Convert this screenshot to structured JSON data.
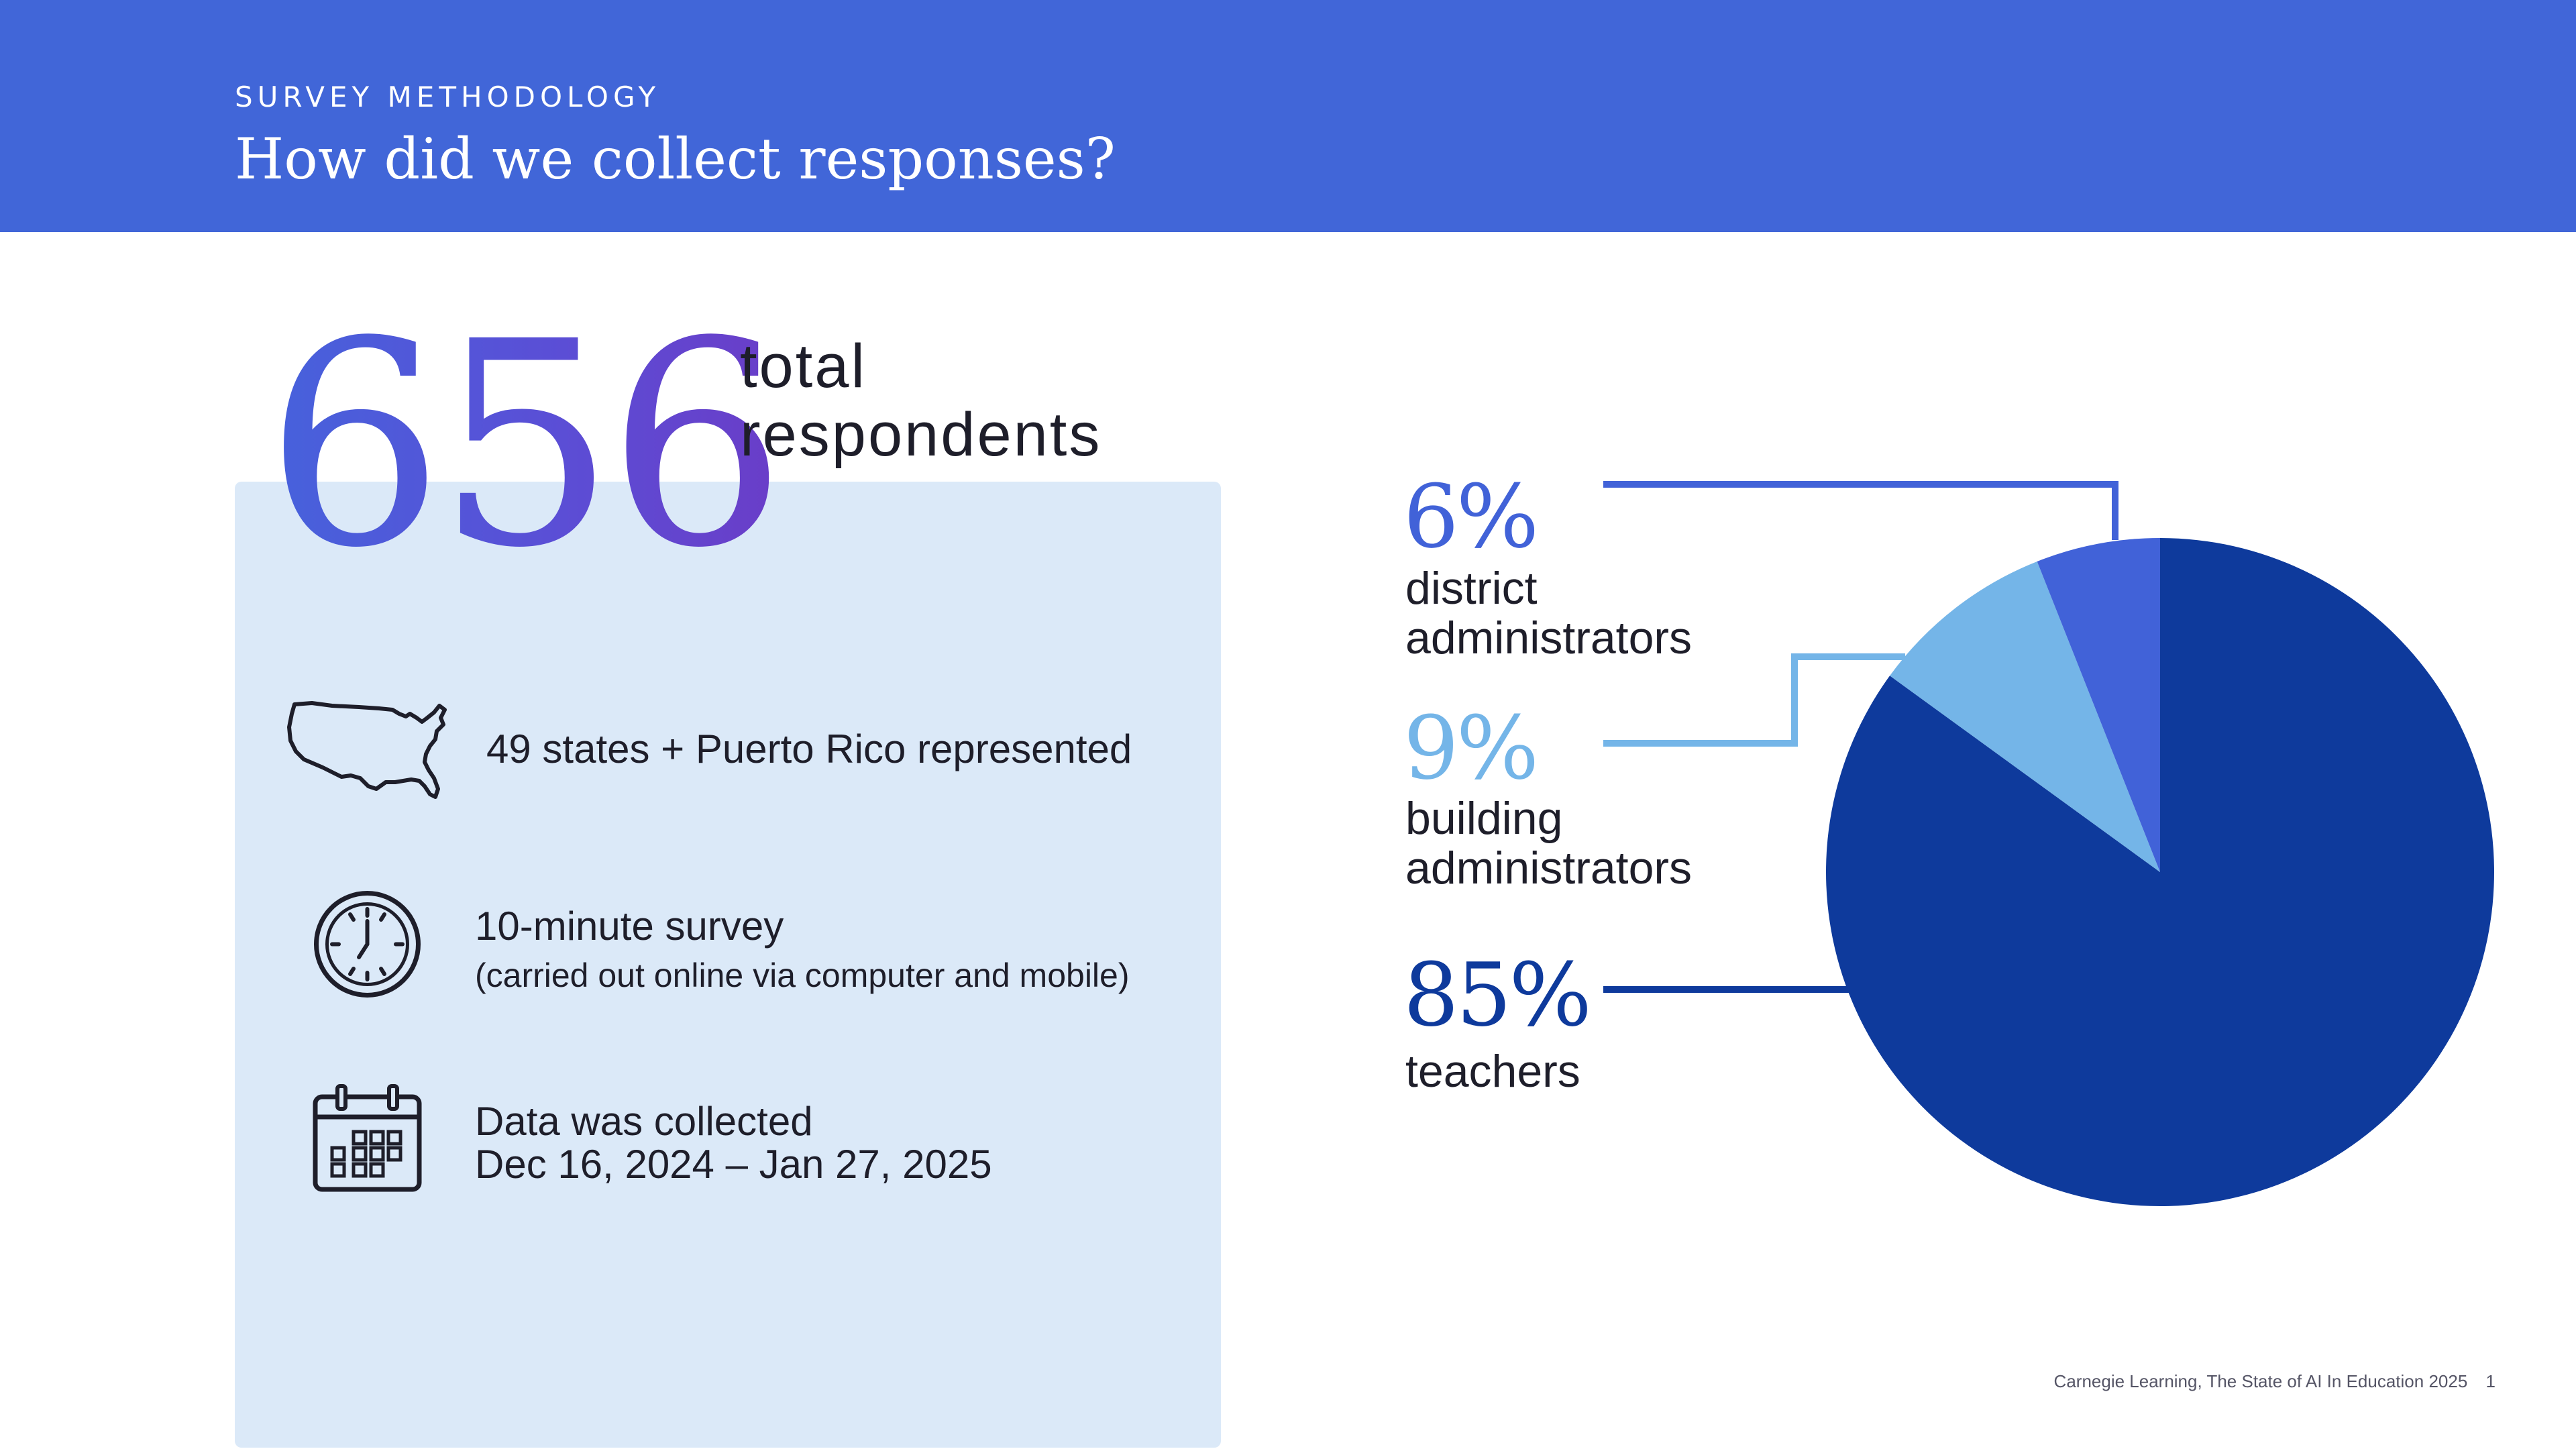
{
  "header": {
    "eyebrow": "SURVEY METHODOLOGY",
    "title": "How did we collect responses?"
  },
  "summary": {
    "number": "656",
    "label_line1": "total",
    "label_line2": "respondents"
  },
  "facts": [
    {
      "icon": "us-map-icon",
      "text": "49 states + Puerto Rico represented"
    },
    {
      "icon": "clock-icon",
      "text": "10-minute survey",
      "subtext": "(carried out online via computer and mobile)"
    },
    {
      "icon": "calendar-icon",
      "text": "Data was collected",
      "subtext": "Dec 16, 2024 – Jan 27, 2025"
    }
  ],
  "chart_data": {
    "type": "pie",
    "slices": [
      {
        "label": "teachers",
        "value": 85,
        "display": "85%",
        "color": "#0e3a9c"
      },
      {
        "label": "building administrators",
        "value": 9,
        "display": "9%",
        "color": "#74b5e8"
      },
      {
        "label": "district administrators",
        "value": 6,
        "display": "6%",
        "color": "#4162d8"
      }
    ]
  },
  "labels": {
    "district": {
      "pct": "6%",
      "line1": "district",
      "line2": "administrators"
    },
    "building": {
      "pct": "9%",
      "line1": "building",
      "line2": "administrators"
    },
    "teachers": {
      "pct": "85%",
      "line1": "teachers"
    }
  },
  "footer": {
    "source": "Carnegie Learning, The State of AI In Education 2025",
    "page": "1"
  }
}
